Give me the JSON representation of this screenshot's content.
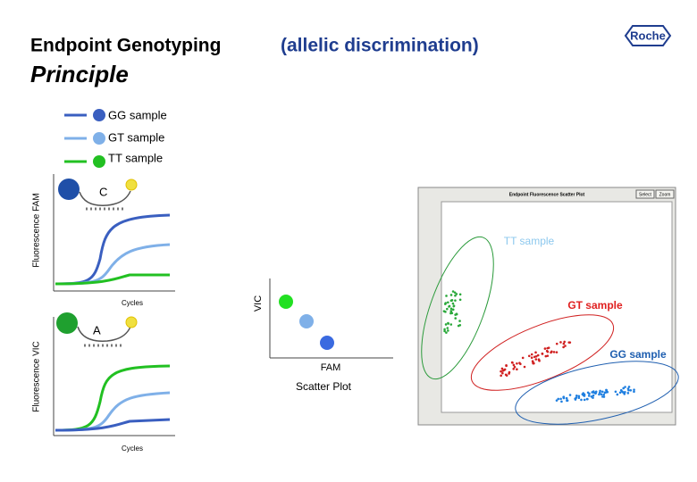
{
  "header": {
    "title": "Endpoint Genotyping",
    "title_highlight": "(allelic discrimination)",
    "subtitle": "Principle",
    "logo": "Roche"
  },
  "legend": [
    "GG sample",
    "GT sample",
    "TT sample"
  ],
  "fam_plot": {
    "probe_allele": "C",
    "y_label": "Fluorescence FAM",
    "x_label": "Cycles"
  },
  "vic_plot": {
    "probe_allele": "A",
    "y_label": "Fluorescence VIC",
    "x_label": "Cycles"
  },
  "scatter_schematic": {
    "y_label": "VIC",
    "x_label": "FAM",
    "caption": "Scatter Plot"
  },
  "software_screenshot": {
    "title": "Endpoint Fluorescence Scatter Plot",
    "buttons": [
      "Select",
      "Zoom"
    ],
    "annotations": [
      "TT sample",
      "GT sample",
      "GG sample"
    ]
  }
}
